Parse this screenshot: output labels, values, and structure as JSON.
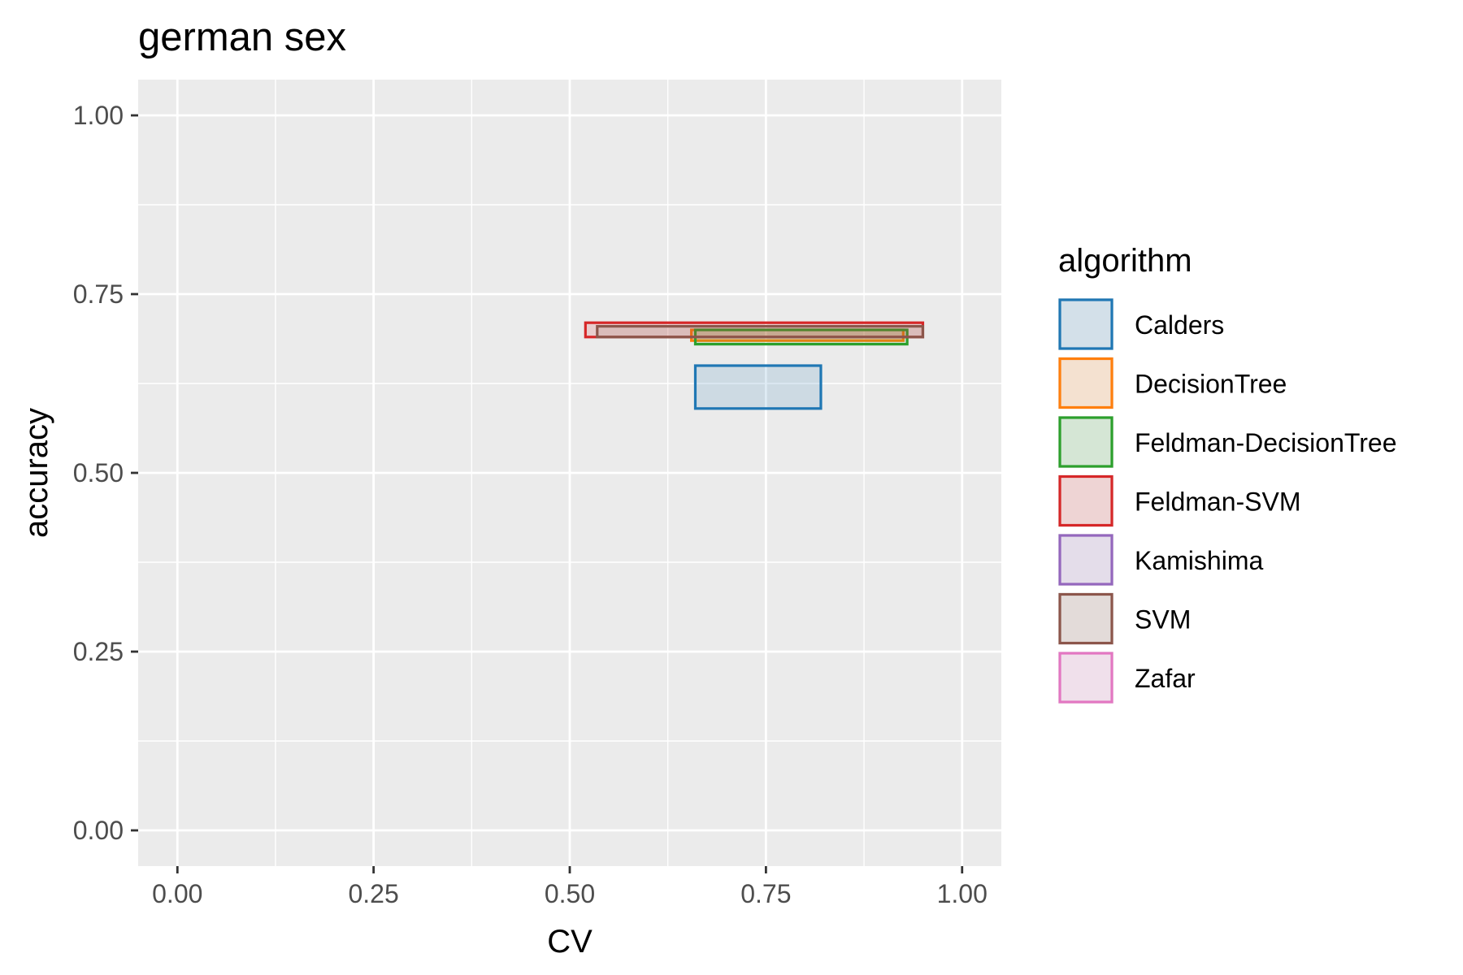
{
  "chart_data": {
    "type": "rectangle",
    "title": "german sex",
    "xlabel": "CV",
    "ylabel": "accuracy",
    "xlim": [
      -0.05,
      1.05
    ],
    "ylim": [
      -0.05,
      1.05
    ],
    "x_ticks": [
      0,
      0.25,
      0.5,
      0.75,
      1
    ],
    "x_tick_labels": [
      "0.00",
      "0.25",
      "0.50",
      "0.75",
      "1.00"
    ],
    "y_ticks": [
      0,
      0.25,
      0.5,
      0.75,
      1
    ],
    "y_tick_labels": [
      "0.00",
      "0.25",
      "0.50",
      "0.75",
      "1.00"
    ],
    "grid": true,
    "legend": {
      "title": "algorithm",
      "position": "right"
    },
    "series": [
      {
        "name": "Calders",
        "color": "#1f77b4",
        "xmin": 0.66,
        "xmax": 0.82,
        "ymin": 0.59,
        "ymax": 0.65
      },
      {
        "name": "DecisionTree",
        "color": "#ff7f0e",
        "xmin": 0.655,
        "xmax": 0.925,
        "ymin": 0.685,
        "ymax": 0.7
      },
      {
        "name": "Feldman-DecisionTree",
        "color": "#2ca02c",
        "xmin": 0.66,
        "xmax": 0.93,
        "ymin": 0.68,
        "ymax": 0.7
      },
      {
        "name": "Feldman-SVM",
        "color": "#d62728",
        "xmin": 0.52,
        "xmax": 0.95,
        "ymin": 0.69,
        "ymax": 0.71
      },
      {
        "name": "Kamishima",
        "color": "#9467bd",
        "xmin": null,
        "xmax": null,
        "ymin": null,
        "ymax": null
      },
      {
        "name": "SVM",
        "color": "#8c564b",
        "xmin": 0.535,
        "xmax": 0.95,
        "ymin": 0.69,
        "ymax": 0.705
      },
      {
        "name": "Zafar",
        "color": "#e377c2",
        "xmin": null,
        "xmax": null,
        "ymin": null,
        "ymax": null
      }
    ]
  }
}
